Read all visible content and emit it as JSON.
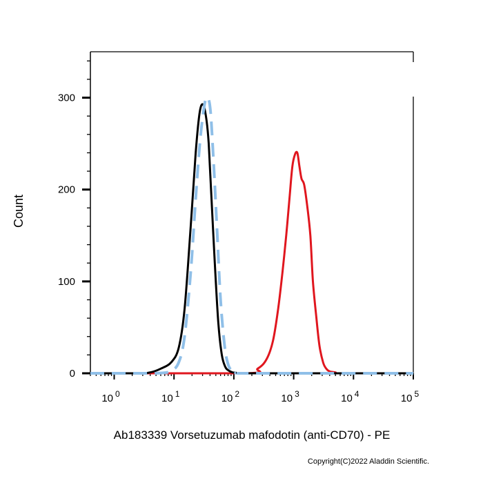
{
  "chart_data": {
    "type": "line",
    "xlabel": "Ab183339 Vorsetuzumab mafodotin (anti-CD70) - PE",
    "ylabel": "Count",
    "x_scale": "log",
    "xlim": [
      0.4,
      100000
    ],
    "ylim": [
      0,
      350
    ],
    "x_ticks": [
      {
        "base": "10",
        "exp": "0",
        "value": 1
      },
      {
        "base": "10",
        "exp": "1",
        "value": 10
      },
      {
        "base": "10",
        "exp": "2",
        "value": 100
      },
      {
        "base": "10",
        "exp": "3",
        "value": 1000
      },
      {
        "base": "10",
        "exp": "4",
        "value": 10000
      },
      {
        "base": "10",
        "exp": "5",
        "value": 100000
      }
    ],
    "y_ticks": [
      {
        "label": "0",
        "value": 0
      },
      {
        "label": "100",
        "value": 100
      },
      {
        "label": "200",
        "value": 200
      },
      {
        "label": "300",
        "value": 300
      }
    ],
    "grid": false,
    "series": [
      {
        "color": "#000000",
        "style": "solid",
        "x": [
          0.4,
          2.5,
          4,
          6,
          9,
          12,
          15,
          19,
          23,
          27,
          31,
          35,
          38,
          42,
          48,
          55,
          63,
          72,
          82,
          95,
          110,
          130,
          200,
          1000,
          100000
        ],
        "y": [
          0,
          0,
          1,
          5,
          12,
          28,
          70,
          160,
          240,
          285,
          292,
          275,
          250,
          195,
          120,
          55,
          20,
          7,
          3,
          1,
          0.5,
          0,
          0,
          0,
          0
        ]
      },
      {
        "color": "#8fbfe8",
        "style": "dashed",
        "x": [
          0.4,
          5,
          9,
          12,
          15,
          19,
          23,
          27,
          31,
          35,
          40,
          45,
          52,
          60,
          70,
          80,
          92,
          110,
          130,
          1000,
          100000
        ],
        "y": [
          0,
          0,
          3,
          12,
          40,
          110,
          190,
          250,
          285,
          300,
          290,
          240,
          160,
          80,
          30,
          10,
          3,
          1,
          0,
          0,
          0
        ]
      },
      {
        "color": "#e0161e",
        "style": "solid",
        "x": [
          0.4,
          150,
          250,
          350,
          450,
          550,
          650,
          750,
          850,
          950,
          1050,
          1150,
          1250,
          1350,
          1500,
          1700,
          1900,
          2100,
          2400,
          2700,
          3100,
          3500,
          4000,
          5000,
          6000,
          100000
        ],
        "y": [
          0,
          0,
          5,
          15,
          35,
          70,
          110,
          150,
          190,
          225,
          238,
          240,
          225,
          212,
          205,
          180,
          150,
          100,
          60,
          30,
          12,
          5,
          2,
          1,
          0,
          0
        ]
      }
    ]
  },
  "copyright": "Copyright(C)2022 Aladdin Scientific."
}
